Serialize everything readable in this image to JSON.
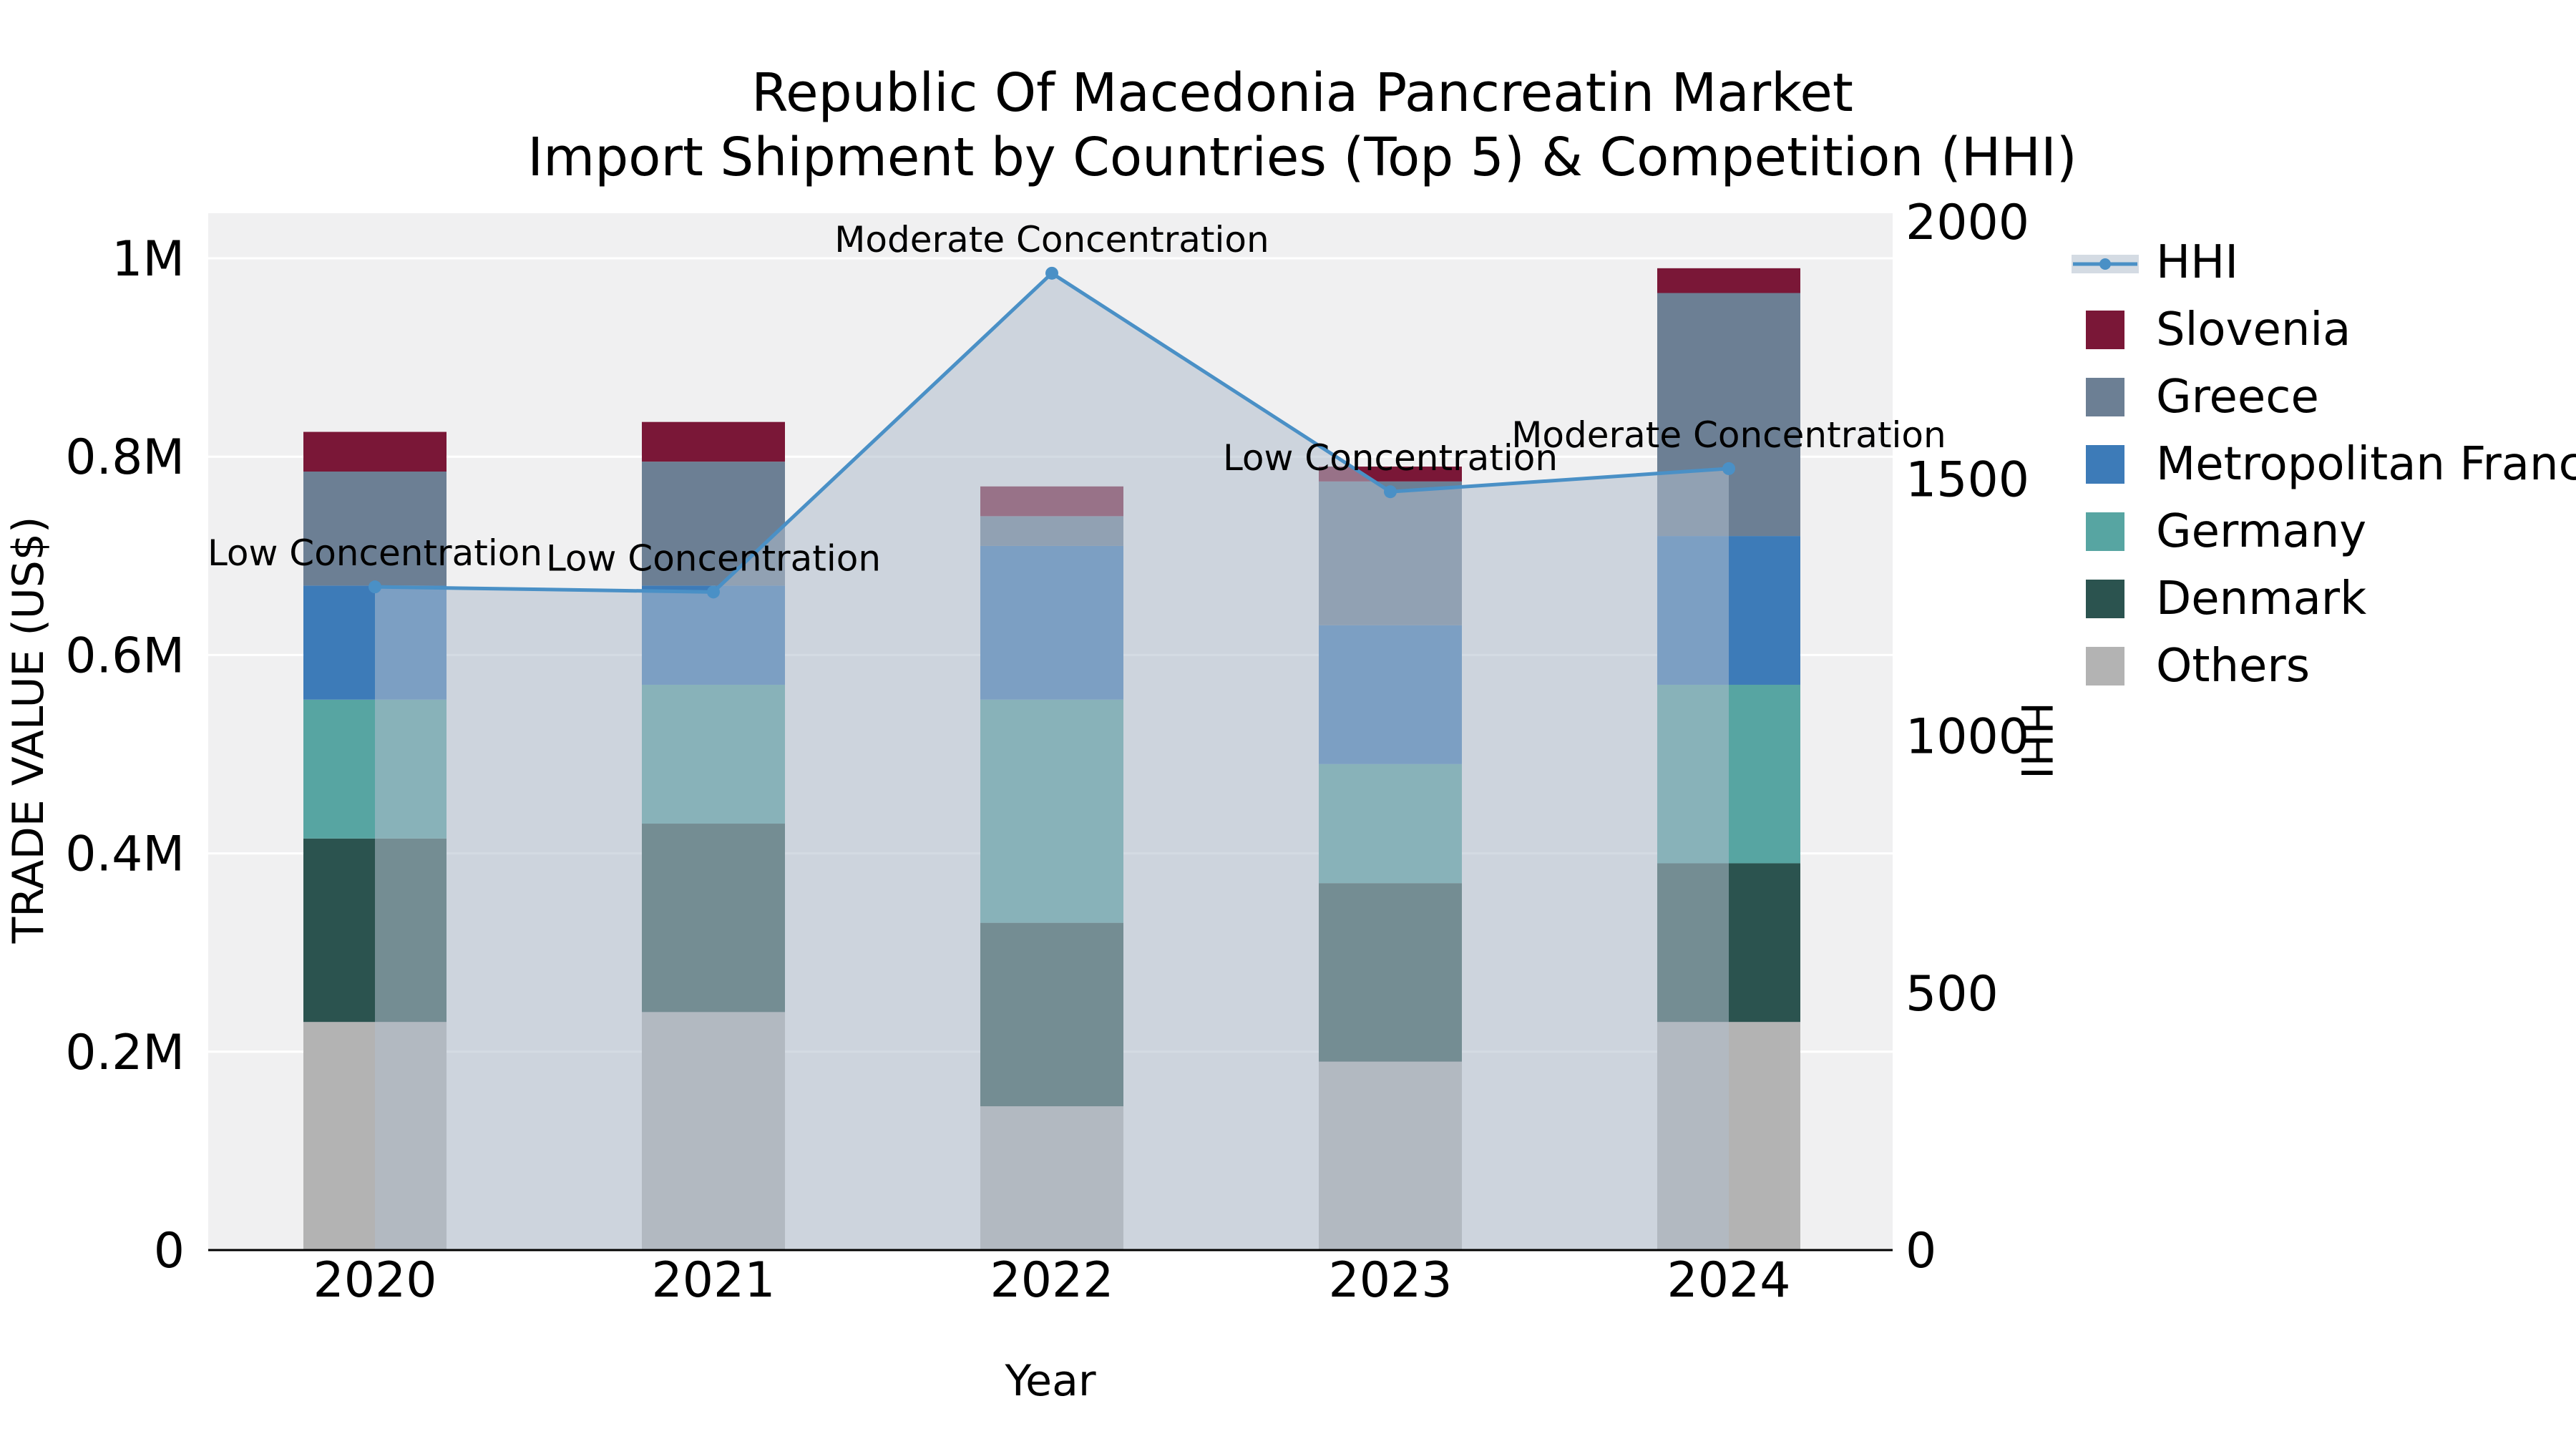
{
  "chart_data": {
    "type": "bar",
    "subtype": "stacked-bar-with-line-overlay",
    "title_line1": "Republic Of Macedonia Pancreatin Market",
    "title_line2": "Import Shipment by Countries (Top 5) & Competition (HHI)",
    "xlabel": "Year",
    "ylabel_left": "TRADE VALUE (US$)",
    "ylabel_right": "HHI",
    "unit": "M US$",
    "categories": [
      "2020",
      "2021",
      "2022",
      "2023",
      "2024"
    ],
    "series": [
      {
        "name": "Others",
        "color": "#b3b3b3",
        "values_musd": [
          0.23,
          0.24,
          0.145,
          0.19,
          0.23
        ]
      },
      {
        "name": "Denmark",
        "color": "#2b534f",
        "values_musd": [
          0.185,
          0.19,
          0.185,
          0.18,
          0.16
        ]
      },
      {
        "name": "Germany",
        "color": "#57a5a2",
        "values_musd": [
          0.14,
          0.14,
          0.225,
          0.12,
          0.18
        ]
      },
      {
        "name": "Metropolitan France",
        "color": "#3d7bb8",
        "values_musd": [
          0.115,
          0.1,
          0.155,
          0.14,
          0.15
        ]
      },
      {
        "name": "Greece",
        "color": "#6c7f94",
        "values_musd": [
          0.115,
          0.125,
          0.03,
          0.145,
          0.245
        ]
      },
      {
        "name": "Slovenia",
        "color": "#7a1737",
        "values_musd": [
          0.04,
          0.04,
          0.03,
          0.015,
          0.025
        ]
      }
    ],
    "hhi": {
      "name": "HHI",
      "color": "#4a90c6",
      "area_fill": "rgba(176,190,204,0.55)",
      "values": [
        1290,
        1280,
        1900,
        1475,
        1520
      ]
    },
    "annotations": [
      "Low Concentration",
      "Low Concentration",
      "Moderate Concentration",
      "Low Concentration",
      "Moderate Concentration"
    ],
    "left_axis": {
      "ticks": [
        "0",
        "0.2M",
        "0.4M",
        "0.6M",
        "0.8M",
        "1M"
      ],
      "tick_values": [
        0,
        0.2,
        0.4,
        0.6,
        0.8,
        1.0
      ],
      "max": 1.045
    },
    "right_axis": {
      "ticks": [
        "0",
        "500",
        "1000",
        "1500",
        "2000"
      ],
      "tick_values": [
        0,
        500,
        1000,
        1500,
        2000
      ],
      "max": 2000
    },
    "legend": [
      "HHI",
      "Slovenia",
      "Greece",
      "Metropolitan France",
      "Germany",
      "Denmark",
      "Others"
    ],
    "plot_background": "#f0f0f1",
    "gridline_color": "#ffffff"
  }
}
